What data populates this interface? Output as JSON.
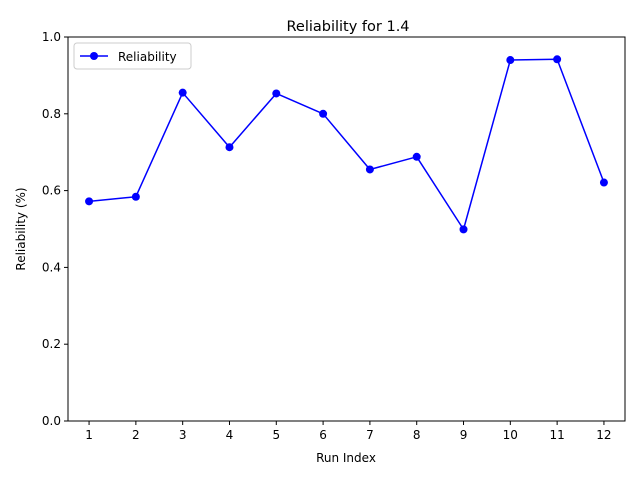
{
  "chart_data": {
    "type": "line",
    "title": "Reliability for 1.4",
    "xlabel": "Run Index",
    "ylabel": "Reliability (%)",
    "x": [
      1,
      2,
      3,
      4,
      5,
      6,
      7,
      8,
      9,
      10,
      11,
      12
    ],
    "series": [
      {
        "name": "Reliability",
        "color": "#0000ff",
        "marker": "circle",
        "values": [
          0.572,
          0.584,
          0.855,
          0.713,
          0.853,
          0.8,
          0.655,
          0.688,
          0.499,
          0.94,
          0.942,
          0.621
        ]
      }
    ],
    "xlim": [
      0.55,
      12.45
    ],
    "ylim": [
      0.0,
      1.0
    ],
    "x_ticks": [
      "1",
      "2",
      "3",
      "4",
      "5",
      "6",
      "7",
      "8",
      "9",
      "10",
      "11",
      "12"
    ],
    "y_ticks": [
      "0.0",
      "0.2",
      "0.4",
      "0.6",
      "0.8",
      "1.0"
    ],
    "grid": false,
    "legend_position": "top-left"
  }
}
